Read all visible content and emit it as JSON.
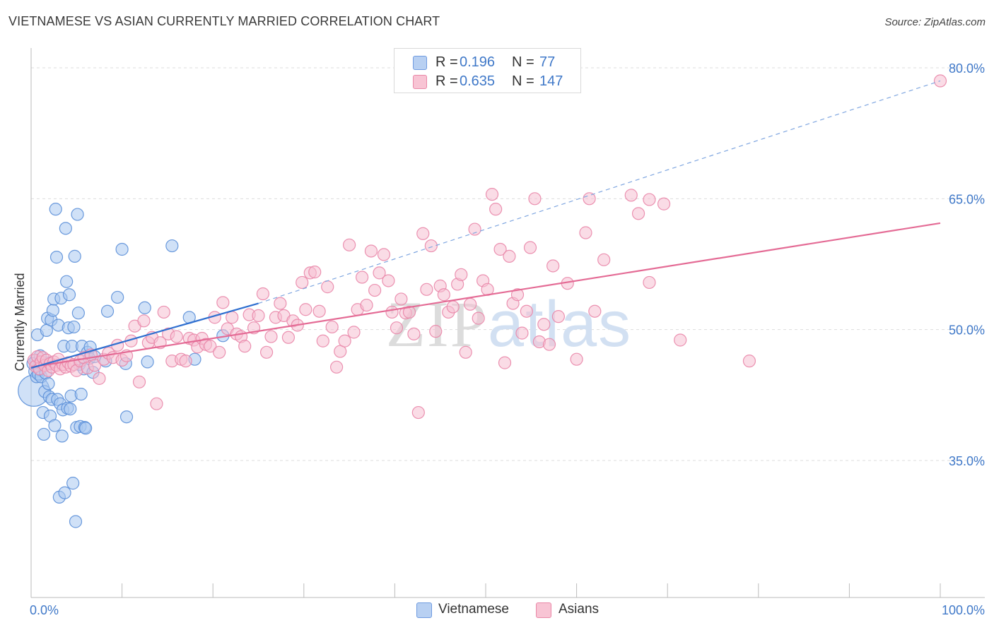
{
  "title": "VIETNAMESE VS ASIAN CURRENTLY MARRIED CORRELATION CHART",
  "source": "Source: ZipAtlas.com",
  "watermark": "ZIPatlas",
  "legend": {
    "rows": [
      {
        "r_label": "R =",
        "r_value": "0.196",
        "n_label": "N =",
        "n_value": "77",
        "fill": "#b8d0f2",
        "stroke": "#6f9be0"
      },
      {
        "r_label": "R =",
        "r_value": "0.635",
        "n_label": "N =",
        "n_value": "147",
        "fill": "#f8c4d4",
        "stroke": "#ea88a8"
      }
    ]
  },
  "bottom_legend": {
    "vietnamese": "Vietnamese",
    "asians": "Asians"
  },
  "colors": {
    "blue_fill": "#aac8f0",
    "blue_stroke": "#5b8fd8",
    "blue_line": "#2f6fd0",
    "pink_fill": "#f6c0d2",
    "pink_stroke": "#e986a8",
    "pink_line": "#e46b95",
    "axis_text": "#3f78c8",
    "grid": "#dddddd"
  },
  "chart_data": {
    "type": "scatter",
    "title": "VIETNAMESE VS ASIAN CURRENTLY MARRIED CORRELATION CHART",
    "xlabel": "",
    "ylabel": "Currently Married",
    "xlim": [
      0,
      100
    ],
    "ylim": [
      20,
      82
    ],
    "x_tick_labels": [
      "0.0%",
      "100.0%"
    ],
    "y_ticks": [
      35,
      50,
      65,
      80
    ],
    "y_tick_labels": [
      "35.0%",
      "50.0%",
      "65.0%",
      "80.0%"
    ],
    "series": [
      {
        "name": "Vietnamese",
        "R": 0.196,
        "N": 77,
        "trend": {
          "x": [
            0,
            25
          ],
          "y": [
            45.6,
            53.0
          ],
          "style": "solid"
        },
        "trend_extension": {
          "x": [
            25,
            100
          ],
          "y": [
            53.0,
            78.5
          ],
          "style": "dashed"
        },
        "points": [
          {
            "x": 0.3,
            "y": 43.0,
            "s": 2.6
          },
          {
            "x": 0.4,
            "y": 45.2
          },
          {
            "x": 0.5,
            "y": 46.5
          },
          {
            "x": 0.6,
            "y": 44.6
          },
          {
            "x": 0.7,
            "y": 49.4
          },
          {
            "x": 0.8,
            "y": 44.9
          },
          {
            "x": 0.9,
            "y": 46.0
          },
          {
            "x": 1.0,
            "y": 45.4
          },
          {
            "x": 1.1,
            "y": 44.6
          },
          {
            "x": 1.2,
            "y": 46.0
          },
          {
            "x": 1.3,
            "y": 40.5
          },
          {
            "x": 1.4,
            "y": 38.0
          },
          {
            "x": 1.5,
            "y": 42.9
          },
          {
            "x": 1.6,
            "y": 45.0
          },
          {
            "x": 1.7,
            "y": 49.9
          },
          {
            "x": 1.8,
            "y": 51.3
          },
          {
            "x": 1.9,
            "y": 43.8
          },
          {
            "x": 2.0,
            "y": 42.3
          },
          {
            "x": 2.1,
            "y": 40.1
          },
          {
            "x": 2.2,
            "y": 51.1
          },
          {
            "x": 2.3,
            "y": 42.0
          },
          {
            "x": 2.4,
            "y": 52.2
          },
          {
            "x": 2.5,
            "y": 53.5
          },
          {
            "x": 2.6,
            "y": 39.0
          },
          {
            "x": 2.7,
            "y": 63.8
          },
          {
            "x": 2.8,
            "y": 58.3
          },
          {
            "x": 2.9,
            "y": 42.0
          },
          {
            "x": 3.0,
            "y": 50.5
          },
          {
            "x": 3.1,
            "y": 30.8
          },
          {
            "x": 3.2,
            "y": 41.5
          },
          {
            "x": 3.3,
            "y": 53.6
          },
          {
            "x": 3.4,
            "y": 37.8
          },
          {
            "x": 3.5,
            "y": 40.8
          },
          {
            "x": 3.6,
            "y": 48.1
          },
          {
            "x": 3.7,
            "y": 31.3
          },
          {
            "x": 3.8,
            "y": 61.6
          },
          {
            "x": 3.9,
            "y": 55.5
          },
          {
            "x": 4.0,
            "y": 41.0
          },
          {
            "x": 4.1,
            "y": 50.2
          },
          {
            "x": 4.2,
            "y": 54.0
          },
          {
            "x": 4.3,
            "y": 40.9
          },
          {
            "x": 4.4,
            "y": 42.4
          },
          {
            "x": 4.5,
            "y": 48.1
          },
          {
            "x": 4.6,
            "y": 32.4
          },
          {
            "x": 4.7,
            "y": 50.3
          },
          {
            "x": 4.8,
            "y": 58.4
          },
          {
            "x": 4.9,
            "y": 28.0
          },
          {
            "x": 5.0,
            "y": 38.8
          },
          {
            "x": 5.1,
            "y": 63.2
          },
          {
            "x": 5.2,
            "y": 51.9
          },
          {
            "x": 5.3,
            "y": 46.0
          },
          {
            "x": 5.4,
            "y": 38.9
          },
          {
            "x": 5.5,
            "y": 42.6
          },
          {
            "x": 5.6,
            "y": 48.1
          },
          {
            "x": 5.8,
            "y": 45.5
          },
          {
            "x": 5.9,
            "y": 38.8
          },
          {
            "x": 6.0,
            "y": 38.7
          },
          {
            "x": 6.2,
            "y": 47.4
          },
          {
            "x": 6.4,
            "y": 46.7
          },
          {
            "x": 6.5,
            "y": 48.0
          },
          {
            "x": 6.8,
            "y": 45.1
          },
          {
            "x": 7.0,
            "y": 46.9
          },
          {
            "x": 8.2,
            "y": 46.4
          },
          {
            "x": 8.4,
            "y": 52.1
          },
          {
            "x": 9.5,
            "y": 53.7
          },
          {
            "x": 10.0,
            "y": 59.2
          },
          {
            "x": 10.4,
            "y": 46.1
          },
          {
            "x": 10.5,
            "y": 40.0
          },
          {
            "x": 12.5,
            "y": 52.5
          },
          {
            "x": 12.8,
            "y": 46.3
          },
          {
            "x": 15.5,
            "y": 59.6
          },
          {
            "x": 17.4,
            "y": 51.4
          },
          {
            "x": 18.0,
            "y": 46.6
          },
          {
            "x": 21.1,
            "y": 49.3
          },
          {
            "x": 0.2,
            "y": 46.1
          },
          {
            "x": 1.0,
            "y": 47.0
          },
          {
            "x": 2.0,
            "y": 46.2
          }
        ]
      },
      {
        "name": "Asians",
        "R": 0.635,
        "N": 147,
        "trend": {
          "x": [
            0,
            100
          ],
          "y": [
            45.7,
            62.2
          ],
          "style": "solid"
        },
        "points": [
          {
            "x": 0.3,
            "y": 46.5
          },
          {
            "x": 0.5,
            "y": 45.8
          },
          {
            "x": 0.7,
            "y": 46.9
          },
          {
            "x": 0.9,
            "y": 45.5
          },
          {
            "x": 1.1,
            "y": 46.3
          },
          {
            "x": 1.3,
            "y": 46.8
          },
          {
            "x": 1.5,
            "y": 45.9
          },
          {
            "x": 1.7,
            "y": 46.5
          },
          {
            "x": 1.9,
            "y": 45.3
          },
          {
            "x": 2.1,
            "y": 46.1
          },
          {
            "x": 2.3,
            "y": 45.7
          },
          {
            "x": 2.5,
            "y": 46.3
          },
          {
            "x": 2.8,
            "y": 45.9
          },
          {
            "x": 3.0,
            "y": 46.6
          },
          {
            "x": 3.2,
            "y": 45.5
          },
          {
            "x": 3.5,
            "y": 46.0
          },
          {
            "x": 3.8,
            "y": 45.7
          },
          {
            "x": 4.1,
            "y": 46.2
          },
          {
            "x": 4.4,
            "y": 45.8
          },
          {
            "x": 4.7,
            "y": 46.0
          },
          {
            "x": 5.0,
            "y": 45.3
          },
          {
            "x": 5.4,
            "y": 46.4
          },
          {
            "x": 5.8,
            "y": 46.8
          },
          {
            "x": 6.2,
            "y": 45.6
          },
          {
            "x": 6.6,
            "y": 47.1
          },
          {
            "x": 7.0,
            "y": 45.9
          },
          {
            "x": 7.5,
            "y": 44.4
          },
          {
            "x": 8.0,
            "y": 46.6
          },
          {
            "x": 8.5,
            "y": 47.3
          },
          {
            "x": 9.0,
            "y": 46.8
          },
          {
            "x": 9.5,
            "y": 48.2
          },
          {
            "x": 10.0,
            "y": 46.5
          },
          {
            "x": 10.5,
            "y": 47.0
          },
          {
            "x": 11.0,
            "y": 48.7
          },
          {
            "x": 11.4,
            "y": 50.4
          },
          {
            "x": 11.9,
            "y": 44.0
          },
          {
            "x": 12.4,
            "y": 51.0
          },
          {
            "x": 12.9,
            "y": 48.5
          },
          {
            "x": 13.3,
            "y": 49.1
          },
          {
            "x": 13.8,
            "y": 41.5
          },
          {
            "x": 14.2,
            "y": 48.5
          },
          {
            "x": 14.6,
            "y": 52.0
          },
          {
            "x": 15.1,
            "y": 49.5
          },
          {
            "x": 15.5,
            "y": 46.4
          },
          {
            "x": 16.0,
            "y": 49.2
          },
          {
            "x": 16.5,
            "y": 46.6
          },
          {
            "x": 17.0,
            "y": 46.4
          },
          {
            "x": 17.4,
            "y": 49.0
          },
          {
            "x": 17.9,
            "y": 48.8
          },
          {
            "x": 18.3,
            "y": 48.0
          },
          {
            "x": 18.8,
            "y": 49.0
          },
          {
            "x": 19.2,
            "y": 48.3
          },
          {
            "x": 19.7,
            "y": 48.1
          },
          {
            "x": 20.2,
            "y": 51.4
          },
          {
            "x": 20.7,
            "y": 47.4
          },
          {
            "x": 21.1,
            "y": 53.1
          },
          {
            "x": 21.6,
            "y": 50.1
          },
          {
            "x": 22.1,
            "y": 51.4
          },
          {
            "x": 22.6,
            "y": 49.5
          },
          {
            "x": 23.1,
            "y": 49.2
          },
          {
            "x": 23.5,
            "y": 48.1
          },
          {
            "x": 24.0,
            "y": 51.7
          },
          {
            "x": 24.5,
            "y": 50.2
          },
          {
            "x": 25.0,
            "y": 51.6
          },
          {
            "x": 25.5,
            "y": 54.1
          },
          {
            "x": 25.9,
            "y": 47.4
          },
          {
            "x": 26.4,
            "y": 49.2
          },
          {
            "x": 26.9,
            "y": 51.4
          },
          {
            "x": 27.4,
            "y": 53.0
          },
          {
            "x": 27.8,
            "y": 51.6
          },
          {
            "x": 28.3,
            "y": 49.1
          },
          {
            "x": 28.8,
            "y": 51.0
          },
          {
            "x": 29.3,
            "y": 50.5
          },
          {
            "x": 29.8,
            "y": 55.4
          },
          {
            "x": 30.2,
            "y": 52.3
          },
          {
            "x": 30.7,
            "y": 56.5
          },
          {
            "x": 31.2,
            "y": 56.6
          },
          {
            "x": 31.7,
            "y": 52.1
          },
          {
            "x": 32.1,
            "y": 48.7
          },
          {
            "x": 32.6,
            "y": 54.9
          },
          {
            "x": 33.1,
            "y": 50.3
          },
          {
            "x": 33.6,
            "y": 45.7
          },
          {
            "x": 34.0,
            "y": 47.5
          },
          {
            "x": 34.5,
            "y": 48.7
          },
          {
            "x": 35.0,
            "y": 59.7
          },
          {
            "x": 35.5,
            "y": 49.7
          },
          {
            "x": 35.9,
            "y": 52.3
          },
          {
            "x": 36.4,
            "y": 56.0
          },
          {
            "x": 36.9,
            "y": 52.8
          },
          {
            "x": 37.4,
            "y": 59.0
          },
          {
            "x": 37.8,
            "y": 54.5
          },
          {
            "x": 38.3,
            "y": 56.5
          },
          {
            "x": 38.8,
            "y": 58.6
          },
          {
            "x": 39.3,
            "y": 55.6
          },
          {
            "x": 39.7,
            "y": 52.0
          },
          {
            "x": 40.2,
            "y": 50.2
          },
          {
            "x": 40.7,
            "y": 53.5
          },
          {
            "x": 41.2,
            "y": 51.9
          },
          {
            "x": 41.6,
            "y": 52.0
          },
          {
            "x": 42.1,
            "y": 49.5
          },
          {
            "x": 42.6,
            "y": 40.5
          },
          {
            "x": 43.1,
            "y": 61.0
          },
          {
            "x": 43.5,
            "y": 54.6
          },
          {
            "x": 44.0,
            "y": 59.6
          },
          {
            "x": 44.5,
            "y": 49.8
          },
          {
            "x": 45.0,
            "y": 55.0
          },
          {
            "x": 45.4,
            "y": 54.0
          },
          {
            "x": 45.9,
            "y": 52.0
          },
          {
            "x": 46.4,
            "y": 52.6
          },
          {
            "x": 46.9,
            "y": 55.2
          },
          {
            "x": 47.3,
            "y": 56.3
          },
          {
            "x": 47.8,
            "y": 47.4
          },
          {
            "x": 48.3,
            "y": 52.9
          },
          {
            "x": 48.8,
            "y": 61.5
          },
          {
            "x": 49.2,
            "y": 51.3
          },
          {
            "x": 49.7,
            "y": 55.6
          },
          {
            "x": 50.2,
            "y": 54.6
          },
          {
            "x": 50.7,
            "y": 65.5
          },
          {
            "x": 51.1,
            "y": 63.8
          },
          {
            "x": 51.6,
            "y": 59.2
          },
          {
            "x": 52.1,
            "y": 46.2
          },
          {
            "x": 52.6,
            "y": 58.4
          },
          {
            "x": 53.0,
            "y": 53.0
          },
          {
            "x": 53.5,
            "y": 54.0
          },
          {
            "x": 54.0,
            "y": 49.6
          },
          {
            "x": 54.5,
            "y": 52.1
          },
          {
            "x": 54.9,
            "y": 59.4
          },
          {
            "x": 55.4,
            "y": 65.0
          },
          {
            "x": 55.9,
            "y": 48.6
          },
          {
            "x": 56.4,
            "y": 50.6
          },
          {
            "x": 57.0,
            "y": 48.3
          },
          {
            "x": 58.0,
            "y": 51.5
          },
          {
            "x": 59.0,
            "y": 55.3
          },
          {
            "x": 60.0,
            "y": 46.6
          },
          {
            "x": 61.0,
            "y": 61.1
          },
          {
            "x": 62.0,
            "y": 52.1
          },
          {
            "x": 63.0,
            "y": 58.0
          },
          {
            "x": 66.0,
            "y": 65.4
          },
          {
            "x": 68.0,
            "y": 64.9
          },
          {
            "x": 79.0,
            "y": 46.4
          },
          {
            "x": 100.0,
            "y": 78.5
          },
          {
            "x": 57.4,
            "y": 57.3
          },
          {
            "x": 61.4,
            "y": 65.0
          },
          {
            "x": 66.8,
            "y": 63.3
          },
          {
            "x": 69.6,
            "y": 64.4
          },
          {
            "x": 68.0,
            "y": 55.4
          },
          {
            "x": 71.4,
            "y": 48.8
          }
        ]
      }
    ]
  }
}
